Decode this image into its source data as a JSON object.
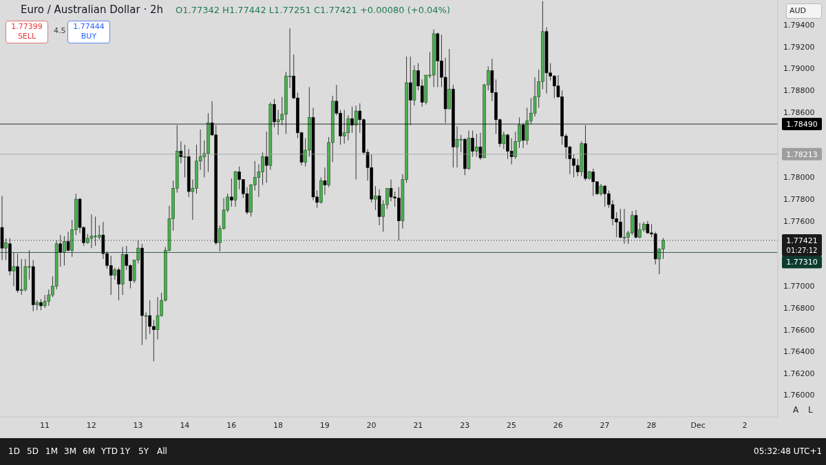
{
  "chart_data": {
    "type": "candlestick",
    "title": "Euro / Australian Dollar · 2h",
    "subtitle": "O1.77342 H1.77442 L1.77251 C1.77421 +0.00080 (+0.04%)",
    "categories": [
      null,
      null,
      null,
      null,
      null,
      null,
      null,
      null,
      null,
      null,
      null,
      "11",
      null,
      null,
      null,
      null,
      null,
      null,
      null,
      null,
      null,
      null,
      null,
      "12",
      null,
      null,
      null,
      null,
      null,
      null,
      null,
      null,
      null,
      null,
      null,
      "13",
      null,
      null,
      null,
      null,
      null,
      null,
      null,
      null,
      null,
      null,
      null,
      "14",
      null,
      null,
      null,
      null,
      null,
      null,
      null,
      null,
      null,
      null,
      null,
      "16",
      null,
      null,
      null,
      null,
      null,
      null,
      null,
      null,
      null,
      null,
      null,
      "18",
      null,
      null,
      null,
      null,
      null,
      null,
      null,
      null,
      null,
      null,
      null,
      "19",
      null,
      null,
      null,
      null,
      null,
      null,
      null,
      null,
      null,
      null,
      null,
      "20",
      null,
      null,
      null,
      null,
      null,
      null,
      null,
      null,
      null,
      null,
      null,
      "21",
      null,
      null,
      null,
      null,
      null,
      null,
      null,
      null,
      null,
      null,
      null,
      "23",
      null,
      null,
      null,
      null,
      null,
      null,
      null,
      null,
      null,
      null,
      null,
      "25",
      null,
      null,
      null,
      null,
      null,
      null,
      null,
      null,
      null,
      null,
      null,
      "26",
      null,
      null,
      null,
      null,
      null,
      null,
      null,
      null,
      null,
      null,
      null,
      "27",
      null,
      null,
      null,
      null,
      null,
      null,
      null,
      null,
      null,
      null,
      null,
      "28",
      null,
      null,
      null,
      null,
      null,
      null,
      null,
      null,
      null,
      null,
      null,
      "Dec",
      null,
      null,
      null,
      null,
      null,
      null,
      null,
      null,
      null,
      null,
      null,
      "2",
      null,
      null,
      null,
      null,
      null,
      null,
      null,
      null
    ],
    "ohlc": [
      [
        1.7754,
        1.7783,
        1.7724,
        1.7735
      ],
      [
        1.7735,
        1.7744,
        1.7724,
        1.774
      ],
      [
        1.7739,
        1.7744,
        1.771,
        1.7714
      ],
      [
        1.7714,
        1.7731,
        1.77,
        1.7718
      ],
      [
        1.7718,
        1.773,
        1.7694,
        1.7696
      ],
      [
        1.7696,
        1.7725,
        1.7692,
        1.7697
      ],
      [
        1.7697,
        1.7725,
        1.7695,
        1.7718
      ],
      [
        1.7718,
        1.7733,
        1.7706,
        1.7718
      ],
      [
        1.7718,
        1.7724,
        1.7677,
        1.7683
      ],
      [
        1.7683,
        1.7687,
        1.7678,
        1.7685
      ],
      [
        1.7685,
        1.7688,
        1.7678,
        1.7682
      ],
      [
        1.7682,
        1.7692,
        1.768,
        1.7686
      ],
      [
        1.7686,
        1.7697,
        1.7682,
        1.7692
      ],
      [
        1.7692,
        1.7709,
        1.769,
        1.77
      ],
      [
        1.77,
        1.7742,
        1.7697,
        1.7739
      ],
      [
        1.7739,
        1.7747,
        1.7718,
        1.7731
      ],
      [
        1.7731,
        1.7746,
        1.7719,
        1.7741
      ],
      [
        1.7741,
        1.775,
        1.7732,
        1.7733
      ],
      [
        1.7733,
        1.7761,
        1.7727,
        1.7752
      ],
      [
        1.7752,
        1.7785,
        1.7747,
        1.778
      ],
      [
        1.778,
        1.7781,
        1.7749,
        1.7754
      ],
      [
        1.7754,
        1.7755,
        1.7737,
        1.774
      ],
      [
        1.774,
        1.7748,
        1.7739,
        1.7744
      ],
      [
        1.7744,
        1.7766,
        1.7735,
        1.7746
      ],
      [
        1.7746,
        1.7764,
        1.7737,
        1.7746
      ],
      [
        1.7745,
        1.7756,
        1.7743,
        1.7747
      ],
      [
        1.7747,
        1.7759,
        1.7725,
        1.773
      ],
      [
        1.773,
        1.7732,
        1.7716,
        1.7719
      ],
      [
        1.7719,
        1.7728,
        1.7692,
        1.771
      ],
      [
        1.771,
        1.7717,
        1.7706,
        1.7715
      ],
      [
        1.7715,
        1.7717,
        1.7687,
        1.7702
      ],
      [
        1.7702,
        1.7736,
        1.7692,
        1.7729
      ],
      [
        1.7729,
        1.7737,
        1.7715,
        1.7719
      ],
      [
        1.7719,
        1.772,
        1.7698,
        1.7705
      ],
      [
        1.7705,
        1.7724,
        1.7703,
        1.7724
      ],
      [
        1.7724,
        1.7742,
        1.7721,
        1.7735
      ],
      [
        1.7735,
        1.7739,
        1.7646,
        1.7673
      ],
      [
        1.7673,
        1.7676,
        1.7651,
        1.7673
      ],
      [
        1.7673,
        1.7687,
        1.7656,
        1.7663
      ],
      [
        1.7663,
        1.7669,
        1.7631,
        1.766
      ],
      [
        1.766,
        1.769,
        1.7651,
        1.7673
      ],
      [
        1.7673,
        1.7694,
        1.7672,
        1.7687
      ],
      [
        1.7687,
        1.7736,
        1.7686,
        1.7733
      ],
      [
        1.7733,
        1.7774,
        1.7732,
        1.7762
      ],
      [
        1.7762,
        1.7797,
        1.7751,
        1.779
      ],
      [
        1.779,
        1.7848,
        1.7786,
        1.7824
      ],
      [
        1.7824,
        1.7833,
        1.7813,
        1.7819
      ],
      [
        1.7819,
        1.783,
        1.78,
        1.7819
      ],
      [
        1.7819,
        1.7826,
        1.7782,
        1.7787
      ],
      [
        1.7787,
        1.7798,
        1.7761,
        1.779
      ],
      [
        1.779,
        1.783,
        1.7785,
        1.7815
      ],
      [
        1.7815,
        1.7844,
        1.7807,
        1.7819
      ],
      [
        1.7819,
        1.7834,
        1.78,
        1.7822
      ],
      [
        1.7822,
        1.7859,
        1.7805,
        1.785
      ],
      [
        1.785,
        1.787,
        1.7838,
        1.7839
      ],
      [
        1.7839,
        1.7848,
        1.7738,
        1.774
      ],
      [
        1.774,
        1.7756,
        1.7732,
        1.7753
      ],
      [
        1.7753,
        1.7781,
        1.7752,
        1.777
      ],
      [
        1.777,
        1.7785,
        1.7768,
        1.7782
      ],
      [
        1.7782,
        1.7799,
        1.7773,
        1.7779
      ],
      [
        1.7779,
        1.7806,
        1.7773,
        1.7805
      ],
      [
        1.7805,
        1.781,
        1.7789,
        1.7798
      ],
      [
        1.7798,
        1.7798,
        1.7781,
        1.7785
      ],
      [
        1.7785,
        1.7791,
        1.7766,
        1.7768
      ],
      [
        1.7768,
        1.7794,
        1.7764,
        1.7793
      ],
      [
        1.7793,
        1.7815,
        1.7788,
        1.78
      ],
      [
        1.78,
        1.7812,
        1.7782,
        1.7805
      ],
      [
        1.7805,
        1.7823,
        1.7793,
        1.7819
      ],
      [
        1.7819,
        1.7842,
        1.7795,
        1.7811
      ],
      [
        1.7811,
        1.7869,
        1.7807,
        1.7867
      ],
      [
        1.7867,
        1.7872,
        1.7846,
        1.7851
      ],
      [
        1.7851,
        1.7862,
        1.7839,
        1.7853
      ],
      [
        1.7853,
        1.7874,
        1.7848,
        1.7858
      ],
      [
        1.7858,
        1.7897,
        1.784,
        1.7893
      ],
      [
        1.7893,
        1.7937,
        1.7882,
        1.7893
      ],
      [
        1.7893,
        1.7913,
        1.7872,
        1.7873
      ],
      [
        1.7873,
        1.7878,
        1.7836,
        1.7841
      ],
      [
        1.7841,
        1.7842,
        1.7811,
        1.7814
      ],
      [
        1.7814,
        1.7836,
        1.781,
        1.7825
      ],
      [
        1.7825,
        1.7883,
        1.7819,
        1.7855
      ],
      [
        1.7855,
        1.7864,
        1.7779,
        1.7782
      ],
      [
        1.7782,
        1.7788,
        1.7772,
        1.7777
      ],
      [
        1.7777,
        1.78,
        1.7776,
        1.7797
      ],
      [
        1.7797,
        1.7809,
        1.7784,
        1.7793
      ],
      [
        1.7793,
        1.7837,
        1.7791,
        1.7832
      ],
      [
        1.7832,
        1.7875,
        1.7814,
        1.787
      ],
      [
        1.787,
        1.7885,
        1.7857,
        1.7859
      ],
      [
        1.7859,
        1.7862,
        1.783,
        1.7838
      ],
      [
        1.7838,
        1.7862,
        1.7831,
        1.7841
      ],
      [
        1.7841,
        1.7857,
        1.7834,
        1.7854
      ],
      [
        1.7854,
        1.7865,
        1.7841,
        1.7848
      ],
      [
        1.7848,
        1.7866,
        1.7798,
        1.7861
      ],
      [
        1.7861,
        1.7868,
        1.7841,
        1.7853
      ],
      [
        1.7853,
        1.7854,
        1.7821,
        1.7823
      ],
      [
        1.7823,
        1.7826,
        1.7797,
        1.7809
      ],
      [
        1.7809,
        1.7821,
        1.7777,
        1.778
      ],
      [
        1.778,
        1.7792,
        1.777,
        1.7783
      ],
      [
        1.7783,
        1.7789,
        1.7756,
        1.7764
      ],
      [
        1.7764,
        1.7779,
        1.775,
        1.7775
      ],
      [
        1.7775,
        1.779,
        1.7771,
        1.779
      ],
      [
        1.779,
        1.7798,
        1.7778,
        1.7782
      ],
      [
        1.7782,
        1.7787,
        1.7773,
        1.7781
      ],
      [
        1.7781,
        1.7791,
        1.7742,
        1.776
      ],
      [
        1.776,
        1.7803,
        1.7753,
        1.7798
      ],
      [
        1.7798,
        1.7911,
        1.7795,
        1.7887
      ],
      [
        1.7887,
        1.7911,
        1.7848,
        1.7871
      ],
      [
        1.7871,
        1.7903,
        1.7866,
        1.7898
      ],
      [
        1.7898,
        1.7905,
        1.788,
        1.7884
      ],
      [
        1.7884,
        1.789,
        1.7865,
        1.7869
      ],
      [
        1.7869,
        1.7894,
        1.7867,
        1.7894
      ],
      [
        1.7894,
        1.7915,
        1.7891,
        1.7894
      ],
      [
        1.7894,
        1.7936,
        1.7883,
        1.7932
      ],
      [
        1.7932,
        1.7933,
        1.7883,
        1.7907
      ],
      [
        1.7907,
        1.7931,
        1.7883,
        1.7892
      ],
      [
        1.7892,
        1.791,
        1.785,
        1.7863
      ],
      [
        1.7863,
        1.7918,
        1.7863,
        1.7881
      ],
      [
        1.7881,
        1.7885,
        1.7809,
        1.7828
      ],
      [
        1.7828,
        1.7847,
        1.7809,
        1.7835
      ],
      [
        1.7835,
        1.7839,
        1.7823,
        1.7835
      ],
      [
        1.7835,
        1.7836,
        1.7802,
        1.7808
      ],
      [
        1.7808,
        1.7843,
        1.7807,
        1.7836
      ],
      [
        1.7836,
        1.7843,
        1.7819,
        1.7824
      ],
      [
        1.7824,
        1.784,
        1.7819,
        1.7828
      ],
      [
        1.7828,
        1.7841,
        1.7816,
        1.7818
      ],
      [
        1.7818,
        1.7886,
        1.7818,
        1.7885
      ],
      [
        1.7885,
        1.7902,
        1.788,
        1.7898
      ],
      [
        1.7898,
        1.7909,
        1.787,
        1.7878
      ],
      [
        1.7878,
        1.789,
        1.784,
        1.7853
      ],
      [
        1.7853,
        1.7854,
        1.7828,
        1.7831
      ],
      [
        1.7831,
        1.7842,
        1.7826,
        1.7839
      ],
      [
        1.7839,
        1.784,
        1.7817,
        1.7824
      ],
      [
        1.7824,
        1.7836,
        1.7812,
        1.7819
      ],
      [
        1.7819,
        1.7842,
        1.7817,
        1.7833
      ],
      [
        1.7833,
        1.7855,
        1.7827,
        1.7848
      ],
      [
        1.7848,
        1.785,
        1.7827,
        1.7834
      ],
      [
        1.7834,
        1.7864,
        1.783,
        1.7852
      ],
      [
        1.7852,
        1.7873,
        1.7849,
        1.7859
      ],
      [
        1.7859,
        1.7892,
        1.7856,
        1.7874
      ],
      [
        1.7874,
        1.7899,
        1.7864,
        1.7888
      ],
      [
        1.7888,
        1.7962,
        1.7881,
        1.7934
      ],
      [
        1.7934,
        1.7938,
        1.7877,
        1.7896
      ],
      [
        1.7896,
        1.7905,
        1.7889,
        1.7893
      ],
      [
        1.7893,
        1.7894,
        1.7873,
        1.7884
      ],
      [
        1.7884,
        1.7894,
        1.7873,
        1.7874
      ],
      [
        1.7874,
        1.788,
        1.783,
        1.7838
      ],
      [
        1.7838,
        1.784,
        1.7817,
        1.7828
      ],
      [
        1.7828,
        1.7829,
        1.7803,
        1.7817
      ],
      [
        1.7817,
        1.7821,
        1.78,
        1.7811
      ],
      [
        1.7811,
        1.7817,
        1.7801,
        1.7805
      ],
      [
        1.7805,
        1.7833,
        1.7801,
        1.7831
      ],
      [
        1.7831,
        1.7848,
        1.7797,
        1.7799
      ],
      [
        1.7799,
        1.7806,
        1.7798,
        1.7805
      ],
      [
        1.7805,
        1.7808,
        1.7783,
        1.7796
      ],
      [
        1.7796,
        1.7796,
        1.7784,
        1.7785
      ],
      [
        1.7785,
        1.7794,
        1.7783,
        1.7792
      ],
      [
        1.7792,
        1.7793,
        1.7773,
        1.7785
      ],
      [
        1.7785,
        1.7788,
        1.7772,
        1.7775
      ],
      [
        1.7775,
        1.7779,
        1.7756,
        1.7762
      ],
      [
        1.7762,
        1.7768,
        1.7745,
        1.7759
      ],
      [
        1.7759,
        1.7771,
        1.7744,
        1.7745
      ],
      [
        1.7745,
        1.7771,
        1.7739,
        1.7745
      ],
      [
        1.7745,
        1.7751,
        1.7739,
        1.7749
      ],
      [
        1.7749,
        1.7769,
        1.7747,
        1.7765
      ],
      [
        1.7765,
        1.777,
        1.7744,
        1.7745
      ],
      [
        1.7745,
        1.7758,
        1.7744,
        1.7752
      ],
      [
        1.7752,
        1.7759,
        1.775,
        1.7757
      ],
      [
        1.7757,
        1.776,
        1.7748,
        1.7749
      ],
      [
        1.7749,
        1.7757,
        1.7745,
        1.7748
      ],
      [
        1.7748,
        1.775,
        1.772,
        1.7725
      ],
      [
        1.7725,
        1.7735,
        1.7711,
        1.7734
      ],
      [
        1.77342,
        1.77442,
        1.77251,
        1.77421
      ],
      null,
      null,
      null,
      null,
      null,
      null,
      null,
      null,
      null,
      null,
      null,
      null,
      null,
      null,
      null,
      null,
      null,
      null,
      null,
      null,
      null,
      null,
      null,
      null,
      null,
      null,
      null,
      null,
      null
    ],
    "colors": [
      "#000000",
      "#4caf50",
      "#000000",
      "#4caf50",
      "#000000",
      "#4caf50",
      "#4caf50",
      "#4caf50",
      "#000000",
      "#4caf50",
      "#000000",
      "#4caf50",
      "#4caf50",
      "#4caf50",
      "#4caf50",
      "#000000",
      "#4caf50",
      "#000000",
      "#4caf50",
      "#4caf50",
      "#000000",
      "#000000",
      "#4caf50",
      "#4caf50",
      "#4caf50",
      "#4caf50",
      "#000000",
      "#000000",
      "#000000",
      "#4caf50",
      "#000000",
      "#4caf50",
      "#000000",
      "#000000",
      "#4caf50",
      "#4caf50",
      "#000000",
      "#4caf50",
      "#000000",
      "#000000",
      "#4caf50",
      "#4caf50",
      "#4caf50",
      "#4caf50",
      "#4caf50",
      "#4caf50",
      "#000000",
      "#4caf50",
      "#000000",
      "#4caf50",
      "#4caf50",
      "#4caf50",
      "#4caf50",
      "#4caf50",
      "#000000",
      "#000000",
      "#4caf50",
      "#4caf50",
      "#4caf50",
      "#000000",
      "#4caf50",
      "#000000",
      "#000000",
      "#000000",
      "#4caf50",
      "#4caf50",
      "#4caf50",
      "#4caf50",
      "#000000",
      "#4caf50",
      "#000000",
      "#4caf50",
      "#4caf50",
      "#4caf50",
      "#4caf50",
      "#000000",
      "#000000",
      "#000000",
      "#4caf50",
      "#4caf50",
      "#000000",
      "#000000",
      "#4caf50",
      "#000000",
      "#4caf50",
      "#4caf50",
      "#000000",
      "#000000",
      "#4caf50",
      "#4caf50",
      "#000000",
      "#4caf50",
      "#000000",
      "#000000",
      "#000000",
      "#000000",
      "#4caf50",
      "#000000",
      "#4caf50",
      "#4caf50",
      "#000000",
      "#000000",
      "#000000",
      "#4caf50",
      "#4caf50",
      "#000000",
      "#4caf50",
      "#000000",
      "#000000",
      "#4caf50",
      "#4caf50",
      "#4caf50",
      "#000000",
      "#000000",
      "#000000",
      "#4caf50",
      "#000000",
      "#4caf50",
      "#4caf50",
      "#000000",
      "#4caf50",
      "#000000",
      "#4caf50",
      "#000000",
      "#4caf50",
      "#4caf50",
      "#000000",
      "#000000",
      "#000000",
      "#4caf50",
      "#000000",
      "#000000",
      "#4caf50",
      "#4caf50",
      "#000000",
      "#4caf50",
      "#4caf50",
      "#4caf50",
      "#4caf50",
      "#4caf50",
      "#000000",
      "#000000",
      "#000000",
      "#000000",
      "#000000",
      "#000000",
      "#000000",
      "#000000",
      "#000000",
      "#4caf50",
      "#000000",
      "#4caf50",
      "#000000",
      "#000000",
      "#4caf50",
      "#000000",
      "#000000",
      "#000000",
      "#000000",
      "#000000",
      "#4caf50",
      "#4caf50",
      "#4caf50",
      "#000000",
      "#4caf50",
      "#4caf50",
      "#000000",
      "#000000",
      "#000000",
      "#4caf50",
      "#4caf50",
      null,
      null,
      null,
      null,
      null,
      null,
      null,
      null,
      null,
      null,
      null,
      null,
      null,
      null,
      null,
      null,
      null,
      null,
      null,
      null,
      null,
      null,
      null,
      null,
      null,
      null,
      null,
      null,
      null
    ],
    "ylim": [
      1.758,
      1.7963
    ],
    "yticks": [
      {
        "value": 1.76,
        "label": "1.76000"
      },
      {
        "value": 1.762,
        "label": "1.76200"
      },
      {
        "value": 1.764,
        "label": "1.76400"
      },
      {
        "value": 1.766,
        "label": "1.76600"
      },
      {
        "value": 1.768,
        "label": "1.76800"
      },
      {
        "value": 1.77,
        "label": "1.77000"
      },
      {
        "value": 1.776,
        "label": "1.77600"
      },
      {
        "value": 1.778,
        "label": "1.77800"
      },
      {
        "value": 1.78,
        "label": "1.78000"
      },
      {
        "value": 1.786,
        "label": "1.78600"
      },
      {
        "value": 1.788,
        "label": "1.78800"
      },
      {
        "value": 1.79,
        "label": "1.79000"
      },
      {
        "value": 1.792,
        "label": "1.79200"
      },
      {
        "value": 1.794,
        "label": "1.79400"
      }
    ],
    "ref_lines": [
      {
        "axis": "y",
        "value": 1.7849,
        "label": "1.78490",
        "color": "#000000",
        "line_style": "solid"
      },
      {
        "axis": "y",
        "value": 1.78213,
        "label": "1.78213",
        "color": "#9e9e9e",
        "line_style": "solid"
      },
      {
        "axis": "y",
        "value": 1.77421,
        "label": "1.77421",
        "color": "#1a1a1a",
        "line_style": "dotted"
      },
      {
        "axis": "y",
        "value": 1.7731,
        "label": "1.77310",
        "color": "#0d3b2e",
        "line_style": "solid"
      }
    ],
    "annotations": [
      "1.77399",
      "SELL",
      "4.5",
      "1.77444",
      "BUY",
      "AUD",
      "01:27:12",
      "1D",
      "5D",
      "1M",
      "3M",
      "6M",
      "YTD",
      "1Y",
      "5Y",
      "All",
      "A",
      "L",
      "05:32:48 UTC+1"
    ],
    "grid": false
  }
}
